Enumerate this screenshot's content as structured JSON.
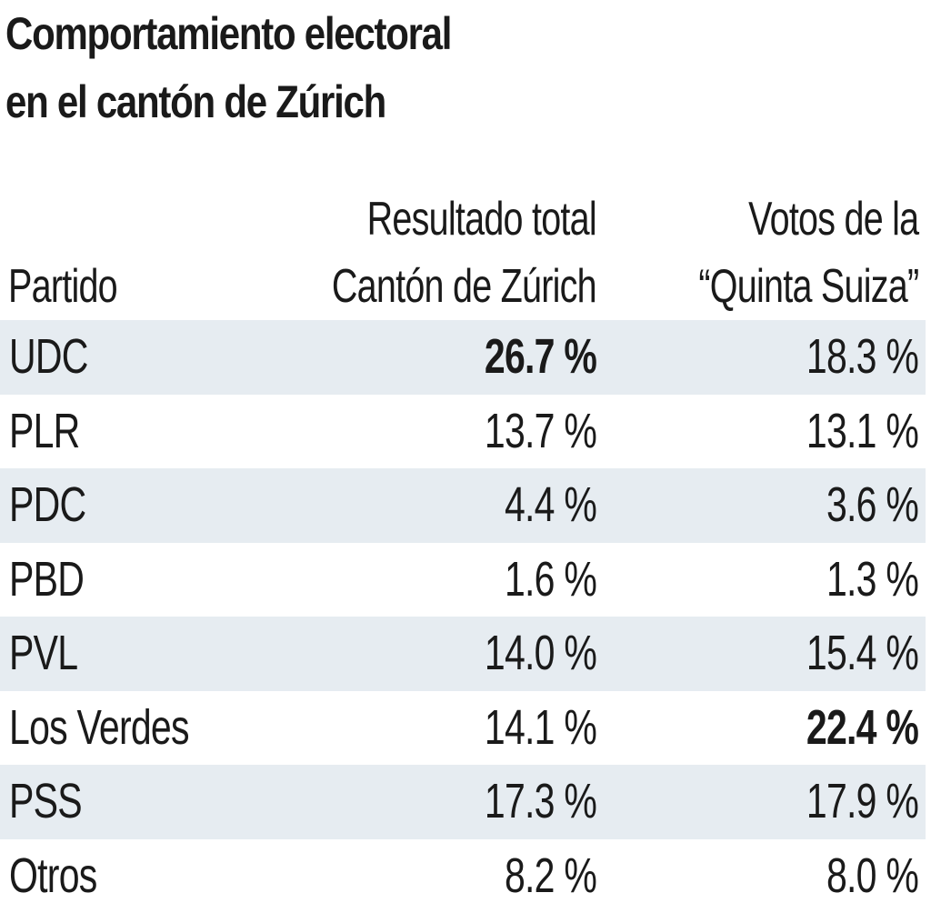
{
  "chart_data": {
    "type": "table",
    "title_lines": [
      "Comportamiento electoral",
      "en el cantón de Zúrich"
    ],
    "columns": [
      {
        "key": "party",
        "header_lines": [
          "Partido"
        ]
      },
      {
        "key": "total",
        "header_lines": [
          "Resultado total",
          "Cantón de Zúrich"
        ]
      },
      {
        "key": "quinta",
        "header_lines": [
          "Votos de la",
          "“Quinta Suiza”"
        ]
      }
    ],
    "rows": [
      {
        "party": "UDC",
        "total": "26.7 %",
        "quinta": "18.3 %",
        "total_value": 26.7,
        "quinta_value": 18.3,
        "bold": "total"
      },
      {
        "party": "PLR",
        "total": "13.7 %",
        "quinta": "13.1 %",
        "total_value": 13.7,
        "quinta_value": 13.1,
        "bold": ""
      },
      {
        "party": "PDC",
        "total": "4.4 %",
        "quinta": "3.6 %",
        "total_value": 4.4,
        "quinta_value": 3.6,
        "bold": ""
      },
      {
        "party": "PBD",
        "total": "1.6 %",
        "quinta": "1.3 %",
        "total_value": 1.6,
        "quinta_value": 1.3,
        "bold": ""
      },
      {
        "party": "PVL",
        "total": "14.0 %",
        "quinta": "15.4 %",
        "total_value": 14.0,
        "quinta_value": 15.4,
        "bold": ""
      },
      {
        "party": "Los Verdes",
        "total": "14.1 %",
        "quinta": "22.4 %",
        "total_value": 14.1,
        "quinta_value": 22.4,
        "bold": "quinta"
      },
      {
        "party": "PSS",
        "total": "17.3 %",
        "quinta": "17.9 %",
        "total_value": 17.3,
        "quinta_value": 17.9,
        "bold": ""
      },
      {
        "party": "Otros",
        "total": "8.2 %",
        "quinta": "8.0 %",
        "total_value": 8.2,
        "quinta_value": 8.0,
        "bold": ""
      }
    ],
    "colors": {
      "text": "#1a1a1a",
      "row_band": "#e6ecf1",
      "background": "#ffffff"
    }
  }
}
